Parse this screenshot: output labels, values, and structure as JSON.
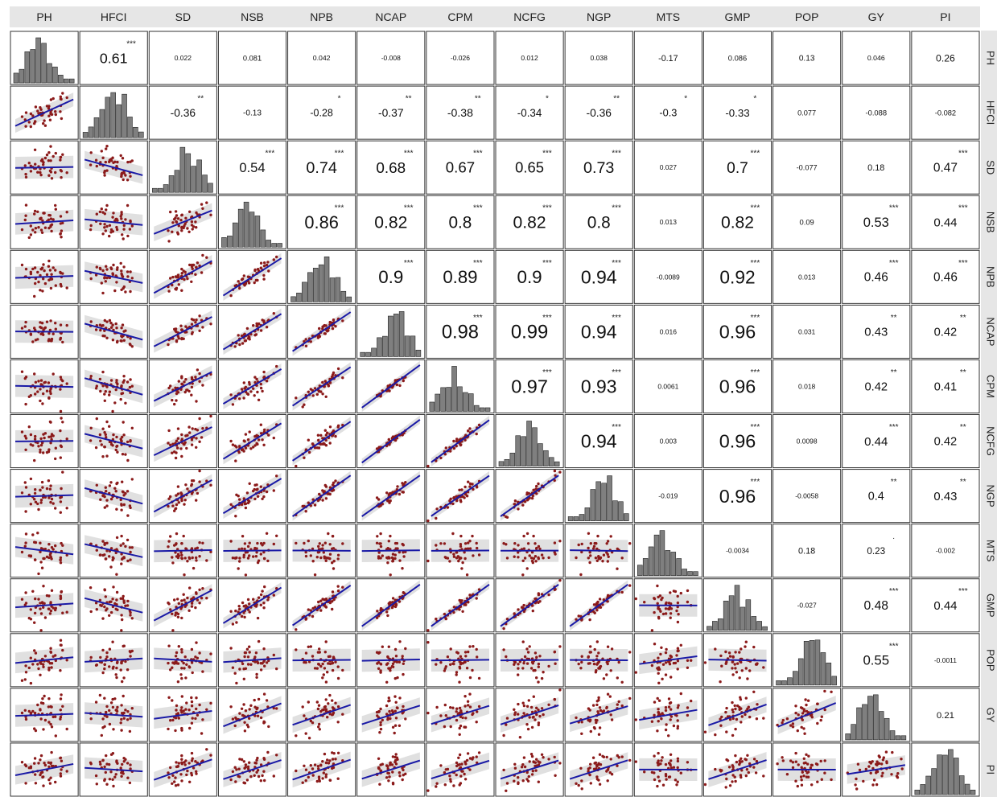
{
  "chart_data": {
    "type": "scatter-matrix",
    "variables": [
      "PH",
      "HFCI",
      "SD",
      "NSB",
      "NPB",
      "NCAP",
      "CPM",
      "NCFG",
      "NGP",
      "MTS",
      "GMP",
      "POP",
      "GY",
      "PI"
    ],
    "correlations": [
      [
        "",
        "0.61",
        "0.022",
        "0.081",
        "0.042",
        "-0.008",
        "-0.026",
        "0.012",
        "0.038",
        "-0.17",
        "0.086",
        "0.13",
        "0.046",
        "0.26"
      ],
      [
        "",
        "",
        "-0.36",
        "-0.13",
        "-0.28",
        "-0.37",
        "-0.38",
        "-0.34",
        "-0.36",
        "-0.3",
        "-0.33",
        "0.077",
        "-0.088",
        "-0.082"
      ],
      [
        "",
        "",
        "",
        "0.54",
        "0.74",
        "0.68",
        "0.67",
        "0.65",
        "0.73",
        "0.027",
        "0.7",
        "-0.077",
        "0.18",
        "0.47"
      ],
      [
        "",
        "",
        "",
        "",
        "0.86",
        "0.82",
        "0.8",
        "0.82",
        "0.8",
        "0.013",
        "0.82",
        "0.09",
        "0.53",
        "0.44"
      ],
      [
        "",
        "",
        "",
        "",
        "",
        "0.9",
        "0.89",
        "0.9",
        "0.94",
        "-0.0089",
        "0.92",
        "0.013",
        "0.46",
        "0.46"
      ],
      [
        "",
        "",
        "",
        "",
        "",
        "",
        "0.98",
        "0.99",
        "0.94",
        "0.016",
        "0.96",
        "0.031",
        "0.43",
        "0.42"
      ],
      [
        "",
        "",
        "",
        "",
        "",
        "",
        "",
        "0.97",
        "0.93",
        "0.0061",
        "0.96",
        "0.018",
        "0.42",
        "0.41"
      ],
      [
        "",
        "",
        "",
        "",
        "",
        "",
        "",
        "",
        "0.94",
        "0.003",
        "0.96",
        "0.0098",
        "0.44",
        "0.42"
      ],
      [
        "",
        "",
        "",
        "",
        "",
        "",
        "",
        "",
        "",
        "-0.019",
        "0.96",
        "-0.0058",
        "0.4",
        "0.43"
      ],
      [
        "",
        "",
        "",
        "",
        "",
        "",
        "",
        "",
        "",
        "",
        "-0.0034",
        "0.18",
        "0.23",
        "-0.002"
      ],
      [
        "",
        "",
        "",
        "",
        "",
        "",
        "",
        "",
        "",
        "",
        "",
        "-0.027",
        "0.48",
        "0.44"
      ],
      [
        "",
        "",
        "",
        "",
        "",
        "",
        "",
        "",
        "",
        "",
        "",
        "",
        "0.55",
        "-0.0011"
      ],
      [
        "",
        "",
        "",
        "",
        "",
        "",
        "",
        "",
        "",
        "",
        "",
        "",
        "",
        "0.21"
      ],
      [
        "",
        "",
        "",
        "",
        "",
        "",
        "",
        "",
        "",
        "",
        "",
        "",
        "",
        ""
      ]
    ],
    "significance": [
      [
        "",
        "***",
        "",
        "",
        "",
        "",
        "",
        "",
        "",
        "",
        "",
        "",
        "",
        ""
      ],
      [
        "",
        "",
        "**",
        "",
        "*",
        "**",
        "**",
        "*",
        "**",
        "*",
        "*",
        "",
        "",
        ""
      ],
      [
        "",
        "",
        "",
        "***",
        "***",
        "***",
        "***",
        "***",
        "***",
        "",
        "***",
        "",
        "",
        "***"
      ],
      [
        "",
        "",
        "",
        "",
        "***",
        "***",
        "***",
        "***",
        "***",
        "",
        "***",
        "",
        "***",
        "***"
      ],
      [
        "",
        "",
        "",
        "",
        "",
        "***",
        "***",
        "***",
        "***",
        "",
        "***",
        "",
        "***",
        "***"
      ],
      [
        "",
        "",
        "",
        "",
        "",
        "",
        "***",
        "***",
        "***",
        "",
        "***",
        "",
        "**",
        "**"
      ],
      [
        "",
        "",
        "",
        "",
        "",
        "",
        "",
        "***",
        "***",
        "",
        "***",
        "",
        "**",
        "**"
      ],
      [
        "",
        "",
        "",
        "",
        "",
        "",
        "",
        "",
        "***",
        "",
        "***",
        "",
        "***",
        "**"
      ],
      [
        "",
        "",
        "",
        "",
        "",
        "",
        "",
        "",
        "",
        "",
        "***",
        "",
        "**",
        "**"
      ],
      [
        "",
        "",
        "",
        "",
        "",
        "",
        "",
        "",
        "",
        "",
        "",
        "",
        ".",
        ""
      ],
      [
        "",
        "",
        "",
        "",
        "",
        "",
        "",
        "",
        "",
        "",
        "",
        "",
        "***",
        "***"
      ],
      [
        "",
        "",
        "",
        "",
        "",
        "",
        "",
        "",
        "",
        "",
        "",
        "",
        "***",
        ""
      ],
      [
        "",
        "",
        "",
        "",
        "",
        "",
        "",
        "",
        "",
        "",
        "",
        "",
        "",
        ""
      ],
      [
        "",
        "",
        "",
        "",
        "",
        "",
        "",
        "",
        "",
        "",
        "",
        "",
        "",
        ""
      ]
    ],
    "colors": {
      "strip_fill": "#e6e6e6",
      "panel_border": "#333333",
      "point": "#8b1a1a",
      "fit_line": "#1a1aa6",
      "confidence_band": "#d3d3d3",
      "histogram_bar": "#7f7f7f"
    }
  }
}
